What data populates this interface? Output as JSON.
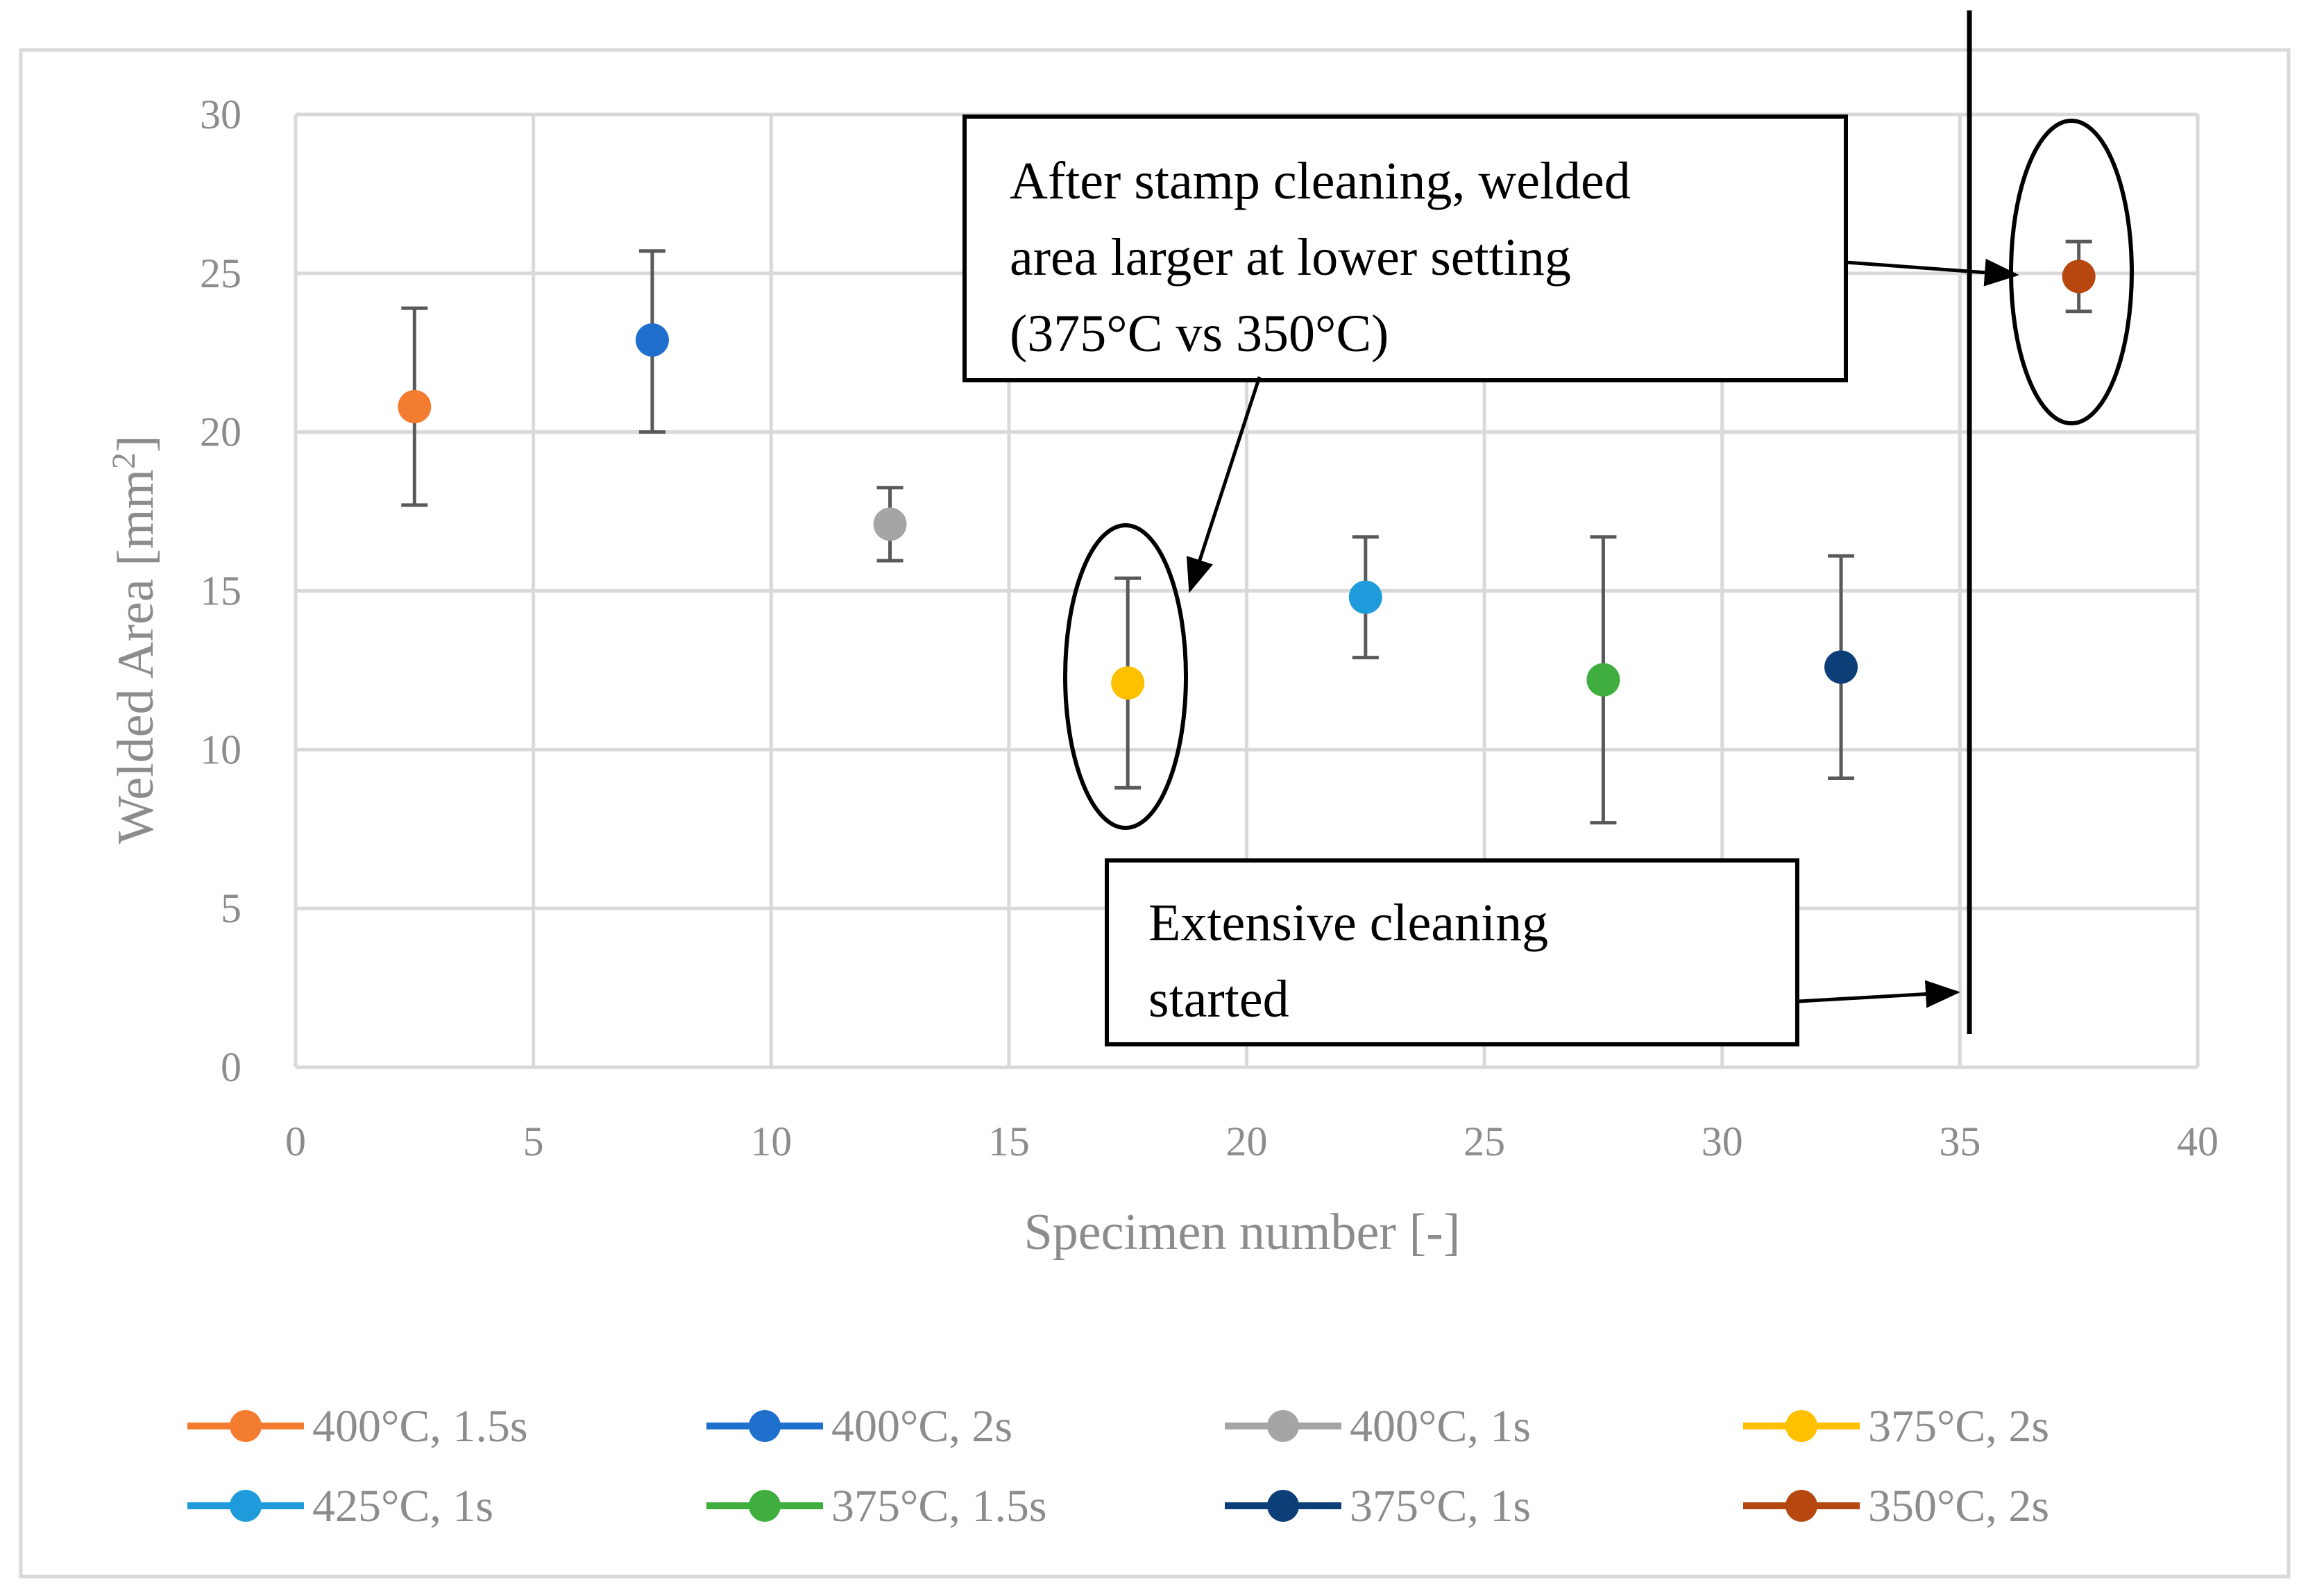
{
  "chart_data": {
    "type": "scatter",
    "title": "",
    "xlabel": "Specimen number [-]",
    "ylabel_main": "Welded Area [mm",
    "ylabel_sup": "2",
    "ylabel_end": "]",
    "xlim": [
      0,
      40
    ],
    "ylim": [
      0,
      30
    ],
    "xticks": [
      0,
      5,
      10,
      15,
      20,
      25,
      30,
      35,
      40
    ],
    "yticks": [
      0,
      5,
      10,
      15,
      20,
      25,
      30
    ],
    "grid": true,
    "legend_position": "bottom",
    "series": [
      {
        "name": "400°C, 1.5s",
        "color": "#f47c30",
        "x": 2.5,
        "y": 20.8,
        "err_low": 17.7,
        "err_high": 23.9
      },
      {
        "name": "400°C, 2s",
        "color": "#1f6fcc",
        "x": 7.5,
        "y": 22.9,
        "err_low": 20.0,
        "err_high": 25.7
      },
      {
        "name": "400°C, 1s",
        "color": "#a5a5a5",
        "x": 12.5,
        "y": 17.1,
        "err_low": 15.95,
        "err_high": 18.25
      },
      {
        "name": "375°C, 2s",
        "color": "#ffc000",
        "x": 17.5,
        "y": 12.1,
        "err_low": 8.8,
        "err_high": 15.4
      },
      {
        "name": "425°C, 1s",
        "color": "#1f9bdb",
        "x": 22.5,
        "y": 14.8,
        "err_low": 12.9,
        "err_high": 16.7
      },
      {
        "name": "375°C, 1.5s",
        "color": "#3fae3f",
        "x": 27.5,
        "y": 12.2,
        "err_low": 7.7,
        "err_high": 16.7
      },
      {
        "name": "375°C, 1s",
        "color": "#0c3f78",
        "x": 32.5,
        "y": 12.6,
        "err_low": 9.1,
        "err_high": 16.1
      },
      {
        "name": "350°C, 2s",
        "color": "#b5470f",
        "x": 37.5,
        "y": 24.9,
        "err_low": 23.8,
        "err_high": 26.0
      }
    ],
    "annotations": [
      {
        "id": "stamp-cleaning",
        "lines": [
          "After stamp cleaning, welded",
          "area larger at lower setting",
          "(375°C vs 350°C)"
        ]
      },
      {
        "id": "extensive-cleaning",
        "lines": [
          "Extensive cleaning",
          "started"
        ]
      }
    ],
    "vertical_marker_x": 35.2
  }
}
